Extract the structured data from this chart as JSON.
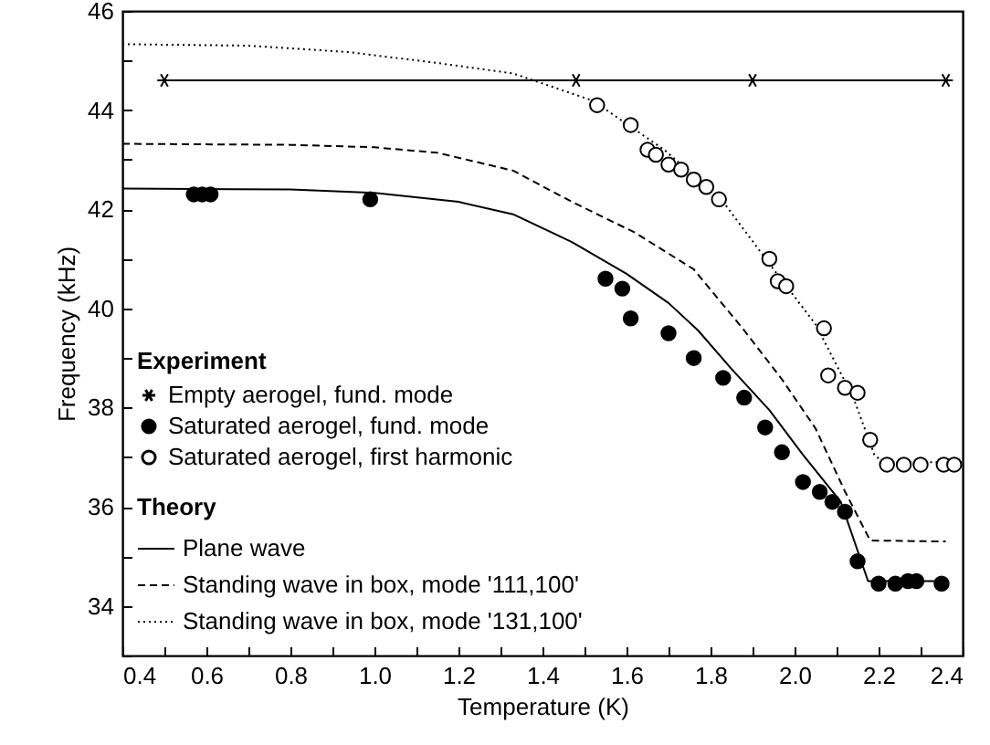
{
  "chart_data": {
    "type": "scatter",
    "xlabel": "Temperature (K)",
    "ylabel": "Frequency (kHz)",
    "legend_title": "Experiment",
    "annotations": [
      "Theory"
    ],
    "legend": "bottom left",
    "grid": false,
    "xlim": [
      0.4,
      2.4
    ],
    "xticks": [
      0.4,
      {
        "value": 0.5,
        "label": null
      },
      0.6,
      {
        "value": 0.7,
        "label": null
      },
      0.8,
      {
        "value": 0.9,
        "label": null
      },
      {
        "value": 1,
        "label": "1.0"
      },
      {
        "value": 1.1,
        "label": null
      },
      1.2,
      {
        "value": 1.3,
        "label": null
      },
      1.4,
      {
        "value": 1.5,
        "label": null
      },
      1.6,
      {
        "value": 1.7,
        "label": null
      },
      1.8,
      {
        "value": 1.9,
        "label": null
      },
      {
        "value": 2,
        "label": "2.0"
      },
      {
        "value": 2.1,
        "label": null
      },
      2.2,
      {
        "value": 2.3,
        "label": null
      },
      2.4
    ],
    "ylim": [
      33,
      46
    ],
    "yticks": [
      {
        "value": 33,
        "label": null
      },
      34,
      {
        "value": 35,
        "label": null
      },
      36,
      {
        "value": 37,
        "label": null
      },
      38,
      {
        "value": 39,
        "label": null
      },
      40,
      {
        "value": 41,
        "label": null
      },
      42,
      {
        "value": 43,
        "label": null
      },
      44,
      {
        "value": 45,
        "label": null
      },
      46
    ],
    "series": [
      {
        "name": "Empty aerogel, fund. mode",
        "type": "line",
        "marker": "cross",
        "line_style": "solid",
        "color": "#000000",
        "x": [
          0.5,
          1.48,
          1.9,
          2.36
        ],
        "values": [
          44.6,
          44.6,
          44.6,
          44.6
        ]
      },
      {
        "name": "Saturated aerogel, fund. mode",
        "marker": "circle",
        "color": "#000000",
        "x": [
          0.57,
          0.59,
          0.61,
          0.99,
          1.55,
          1.59,
          1.61,
          1.7,
          1.76,
          1.83,
          1.88,
          1.93,
          1.97,
          2.02,
          2.06,
          2.09,
          2.12,
          2.15,
          2.2,
          2.24,
          2.27,
          2.29,
          2.35
        ],
        "values": [
          42.3,
          42.3,
          42.3,
          42.2,
          40.6,
          40.4,
          39.8,
          39.5,
          39.0,
          38.6,
          38.2,
          37.6,
          37.1,
          36.5,
          36.3,
          36.1,
          35.9,
          34.9,
          34.45,
          34.45,
          34.5,
          34.5,
          34.45
        ]
      },
      {
        "name": "Saturated aerogel, first harmonic",
        "marker": "circle",
        "color": "#ffffff",
        "x": [
          1.53,
          1.61,
          1.65,
          1.67,
          1.7,
          1.73,
          1.76,
          1.79,
          1.82,
          1.94,
          1.96,
          1.98,
          2.07,
          2.08,
          2.12,
          2.15,
          2.18,
          2.22,
          2.26,
          2.3,
          2.355,
          2.38
        ],
        "values": [
          44.1,
          43.7,
          43.2,
          43.1,
          42.9,
          42.8,
          42.6,
          42.45,
          42.2,
          41.0,
          40.55,
          40.45,
          39.6,
          38.65,
          38.4,
          38.3,
          37.35,
          36.85,
          36.85,
          36.85,
          36.85,
          36.85
        ]
      },
      {
        "name": "Plane wave",
        "type": "line",
        "marker": "none",
        "line_style": "solid",
        "color": "#000000",
        "x": [
          0.4,
          0.8,
          1.0,
          1.2,
          1.33,
          1.47,
          1.6,
          1.7,
          1.77,
          1.85,
          1.94,
          2.02,
          2.11,
          2.175,
          2.36
        ],
        "values": [
          42.42,
          42.4,
          42.33,
          42.15,
          41.9,
          41.34,
          40.7,
          40.11,
          39.56,
          38.78,
          37.95,
          37.05,
          36.1,
          34.5,
          34.5
        ]
      },
      {
        "name": "Standing wave in box, mode '111,100'",
        "type": "line",
        "marker": "none",
        "line_style": "dashed",
        "color": "#000000",
        "x": [
          0.4,
          0.8,
          1.0,
          1.15,
          1.33,
          1.47,
          1.62,
          1.76,
          1.88,
          1.97,
          2.05,
          2.12,
          2.18,
          2.36
        ],
        "values": [
          43.32,
          43.3,
          43.25,
          43.14,
          42.78,
          42.15,
          41.53,
          40.79,
          39.56,
          38.57,
          37.58,
          36.31,
          35.32,
          35.3
        ]
      },
      {
        "name": "Standing wave in box, mode '131,100'",
        "type": "line",
        "marker": "none",
        "line_style": "dotted",
        "color": "#000000",
        "x": [
          0.4,
          0.7,
          0.94,
          1.15,
          1.33,
          1.52,
          1.69,
          1.83,
          1.95,
          2.05,
          2.14,
          2.19,
          2.21,
          2.38
        ],
        "values": [
          45.33,
          45.3,
          45.17,
          44.95,
          44.74,
          44.19,
          43.2,
          42.15,
          40.79,
          39.68,
          38.2,
          37.05,
          36.9,
          36.9
        ]
      }
    ]
  }
}
